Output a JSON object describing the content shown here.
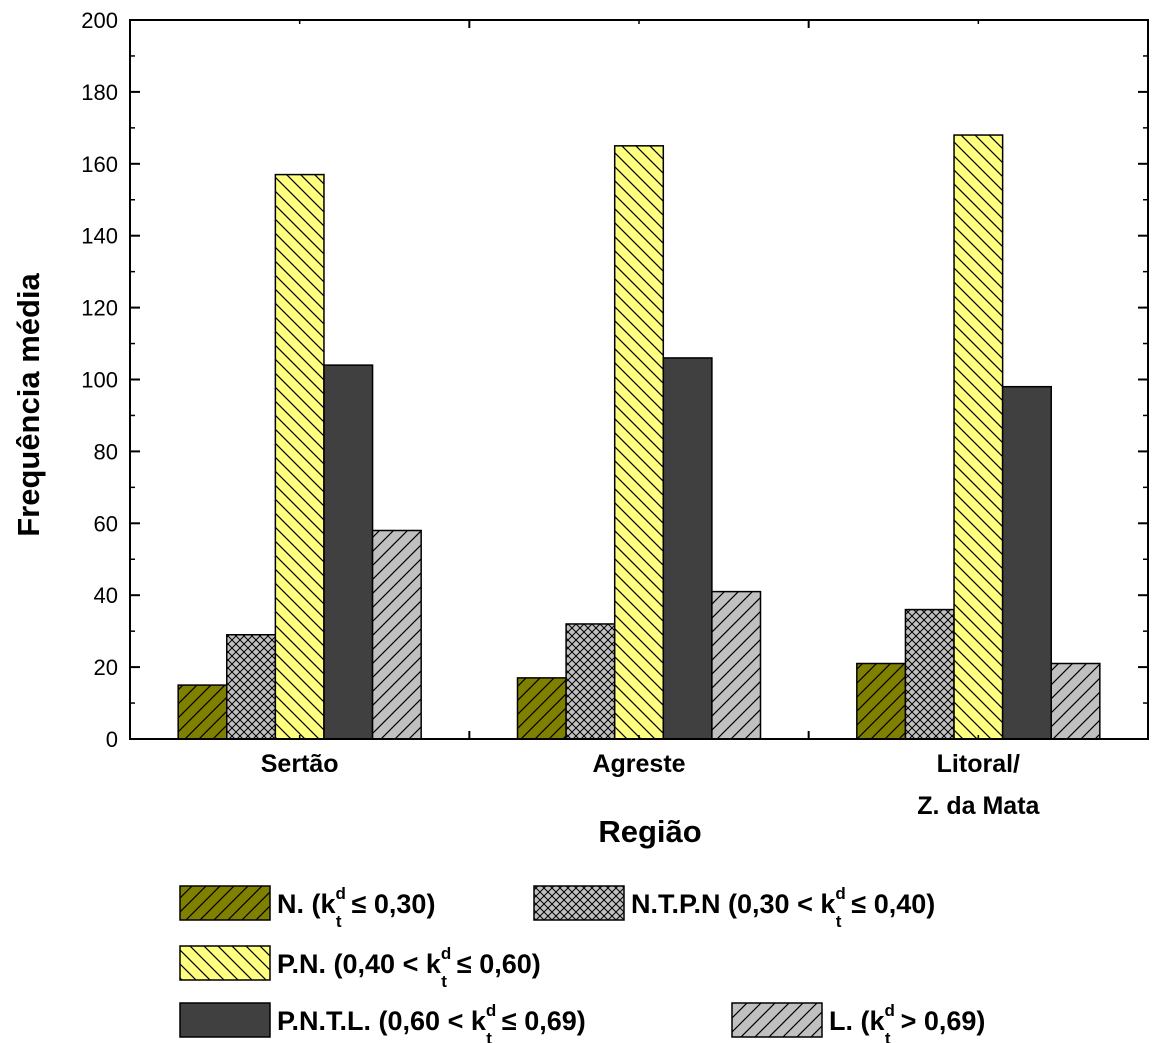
{
  "chart_data": {
    "type": "bar",
    "xlabel": "Região",
    "ylabel": "Frequência média",
    "ylim": [
      0,
      200
    ],
    "yticks": [
      0,
      20,
      40,
      60,
      80,
      100,
      120,
      140,
      160,
      180,
      200
    ],
    "categories": [
      {
        "lines": [
          "Sertão"
        ]
      },
      {
        "lines": [
          "Agreste"
        ]
      },
      {
        "lines": [
          "Litoral/",
          "Z. da Mata"
        ]
      }
    ],
    "series": [
      {
        "name": "N.",
        "range": "(k_t^d ≤ 0,30)",
        "values": [
          15,
          17,
          21
        ],
        "color": "#808000",
        "pattern": "diag-fwd"
      },
      {
        "name": "N.T.P.N",
        "range": "(0,30 < k_t^d ≤ 0,40)",
        "values": [
          29,
          32,
          36
        ],
        "color": "#c0c0c0",
        "pattern": "crosshatch"
      },
      {
        "name": "P.N.",
        "range": "(0,40 < k_t^d ≤ 0,60)",
        "values": [
          157,
          165,
          168
        ],
        "color": "#ffff80",
        "pattern": "diag-back"
      },
      {
        "name": "P.N.T.L.",
        "range": "(0,60 < k_t^d ≤ 0,69)",
        "values": [
          104,
          106,
          98
        ],
        "color": "#404040",
        "pattern": "solid"
      },
      {
        "name": "L.",
        "range": "(k_t^d > 0,69)",
        "values": [
          58,
          41,
          21
        ],
        "color": "#c0c0c0",
        "pattern": "diag-fwd"
      }
    ],
    "legend": {
      "placement": "bottom",
      "entries": [
        {
          "series": 0,
          "pre": "N. (k",
          "mid": "≤ 0,30)"
        },
        {
          "series": 1,
          "pre": "N.T.P.N (0,30 < k",
          "mid": "≤ 0,40)"
        },
        {
          "series": 2,
          "pre": "P.N. (0,40 < k",
          "mid": "≤ 0,60)"
        },
        {
          "series": 3,
          "pre": "P.N.T.L. (0,60 < k",
          "mid": "≤ 0,69)"
        },
        {
          "series": 4,
          "pre": "L. (k",
          "mid": "> 0,69)"
        }
      ],
      "sub": "t",
      "sup": "d"
    },
    "grid": false
  }
}
